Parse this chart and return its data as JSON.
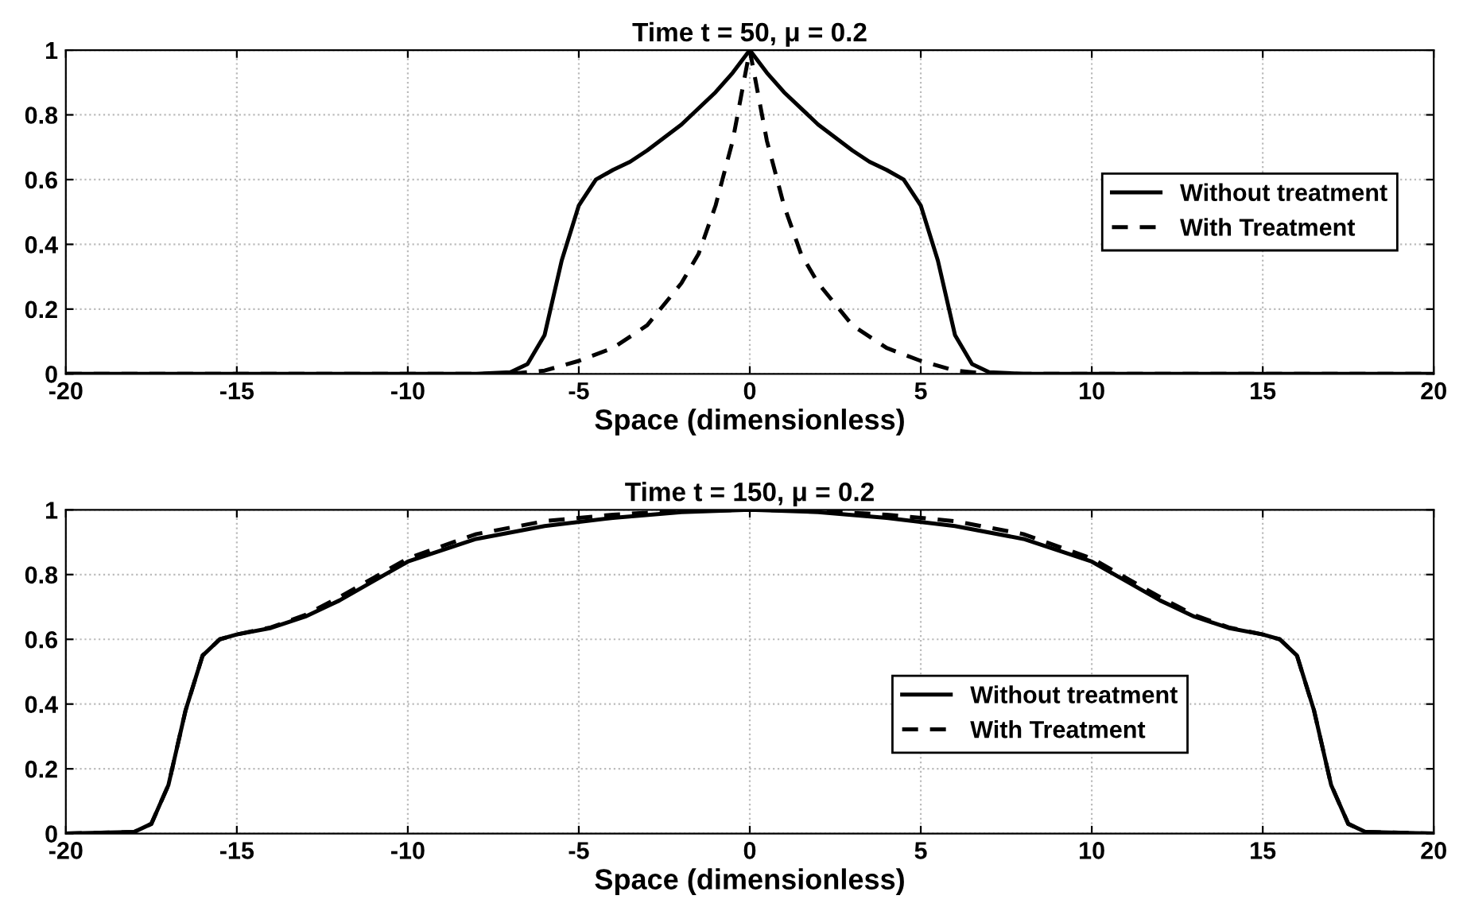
{
  "chart_data": [
    {
      "type": "line",
      "title": "Time t = 50, μ = 0.2",
      "xlabel": "Space (dimensionless)",
      "xlim": [
        -20,
        20
      ],
      "ylim": [
        0,
        1
      ],
      "xticks": [
        -20,
        -15,
        -10,
        -5,
        0,
        5,
        10,
        15,
        20
      ],
      "yticks": [
        0,
        0.2,
        0.4,
        0.6,
        0.8,
        1
      ],
      "grid": true,
      "legend": "right",
      "series": [
        {
          "name": "Without treatment",
          "color": "#000000",
          "line_style": "solid",
          "x": [
            -20,
            -8,
            -7,
            -6.5,
            -6,
            -5.5,
            -5,
            -4.5,
            -4,
            -3.5,
            -3,
            -2,
            -1,
            -0.5,
            0,
            0.5,
            1,
            2,
            3,
            3.5,
            4,
            4.5,
            5,
            5.5,
            6,
            6.5,
            7,
            8,
            20
          ],
          "values": [
            0,
            0,
            0.005,
            0.03,
            0.12,
            0.35,
            0.52,
            0.6,
            0.63,
            0.655,
            0.69,
            0.77,
            0.87,
            0.93,
            1,
            0.93,
            0.87,
            0.77,
            0.69,
            0.655,
            0.63,
            0.6,
            0.52,
            0.35,
            0.12,
            0.03,
            0.005,
            0,
            0
          ]
        },
        {
          "name": "With Treatment",
          "color": "#000000",
          "line_style": "dashed",
          "x": [
            -20,
            -7,
            -6,
            -5,
            -4,
            -3,
            -2,
            -1.5,
            -1,
            -0.5,
            -0.25,
            0,
            0.25,
            0.5,
            1,
            1.5,
            2,
            3,
            4,
            5,
            6,
            7,
            20
          ],
          "values": [
            0,
            0,
            0.01,
            0.04,
            0.08,
            0.15,
            0.28,
            0.37,
            0.52,
            0.72,
            0.86,
            1,
            0.86,
            0.72,
            0.52,
            0.37,
            0.28,
            0.15,
            0.08,
            0.04,
            0.01,
            0,
            0
          ]
        }
      ]
    },
    {
      "type": "line",
      "title": "Time t = 150, μ = 0.2",
      "xlabel": "Space (dimensionless)",
      "xlim": [
        -20,
        20
      ],
      "ylim": [
        0,
        1
      ],
      "xticks": [
        -20,
        -15,
        -10,
        -5,
        0,
        5,
        10,
        15,
        20
      ],
      "yticks": [
        0,
        0.2,
        0.4,
        0.6,
        0.8,
        1
      ],
      "grid": true,
      "legend": "bottom right",
      "series": [
        {
          "name": "Without treatment",
          "color": "#000000",
          "line_style": "solid",
          "x": [
            -20,
            -18,
            -17.5,
            -17,
            -16.5,
            -16,
            -15.5,
            -15,
            -14,
            -13,
            -12,
            -11,
            -10,
            -8,
            -6,
            -4,
            -2,
            0,
            2,
            4,
            6,
            8,
            10,
            11,
            12,
            13,
            14,
            15,
            15.5,
            16,
            16.5,
            17,
            17.5,
            18,
            20
          ],
          "values": [
            0,
            0.005,
            0.03,
            0.15,
            0.38,
            0.55,
            0.6,
            0.615,
            0.635,
            0.67,
            0.72,
            0.78,
            0.84,
            0.91,
            0.95,
            0.975,
            0.993,
            1,
            0.993,
            0.975,
            0.95,
            0.91,
            0.84,
            0.78,
            0.72,
            0.67,
            0.635,
            0.615,
            0.6,
            0.55,
            0.38,
            0.15,
            0.03,
            0.005,
            0
          ]
        },
        {
          "name": "With Treatment",
          "color": "#000000",
          "line_style": "dashed",
          "x": [
            -20,
            -18,
            -17.5,
            -17,
            -16.5,
            -16,
            -15.5,
            -15,
            -14,
            -13,
            -12,
            -11,
            -10,
            -8,
            -6,
            -4,
            -2,
            0,
            2,
            4,
            6,
            8,
            10,
            11,
            12,
            13,
            14,
            15,
            15.5,
            16,
            16.5,
            17,
            17.5,
            18,
            20
          ],
          "values": [
            0,
            0.005,
            0.03,
            0.15,
            0.38,
            0.55,
            0.6,
            0.615,
            0.637,
            0.675,
            0.73,
            0.79,
            0.85,
            0.925,
            0.965,
            0.985,
            0.997,
            1,
            0.997,
            0.985,
            0.965,
            0.925,
            0.85,
            0.79,
            0.73,
            0.675,
            0.637,
            0.615,
            0.6,
            0.55,
            0.38,
            0.15,
            0.03,
            0.005,
            0
          ]
        }
      ]
    }
  ]
}
